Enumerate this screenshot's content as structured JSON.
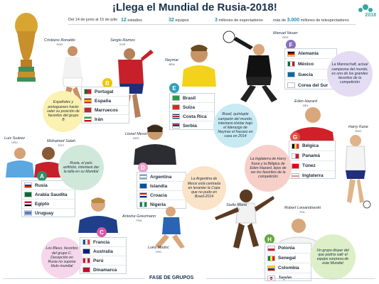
{
  "header": {
    "title": "¡Llega el Mundial de Rusia-2018!",
    "dates": "Del 14 de junio al 15 de julio",
    "stadiums_num": "12",
    "stadiums_label": "estadios",
    "teams_num": "32",
    "teams_label": "equipos",
    "spectators_num": "3",
    "spectators_label": "millones de espectadores",
    "tv_pre": "más de",
    "tv_num": "3.000",
    "tv_label": "millones de telespectadores",
    "logo_year": "2018"
  },
  "colors": {
    "accent": "#1d8fb5",
    "groupA": "#2f8f6a",
    "groupB": "#f0c400",
    "groupC": "#d45aa4",
    "groupD": "#e8a0c8",
    "groupE": "#2fa0b8",
    "groupF": "#8b6fc0",
    "groupG": "#e2534a",
    "groupH": "#66a83f"
  },
  "players": {
    "ronaldo": {
      "name": "Cristiano Ronaldo",
      "country": "POR"
    },
    "ramos": {
      "name": "Sergio Ramos",
      "country": "ESP"
    },
    "neymar": {
      "name": "Neymar",
      "country": "BRA"
    },
    "neuer": {
      "name": "Manuel Neuer",
      "country": "GER"
    },
    "suarez": {
      "name": "Luis Suárez",
      "country": "URU"
    },
    "salah": {
      "name": "Mohamed Salah",
      "country": "EGY"
    },
    "messi": {
      "name": "Lionel Messi",
      "country": "ARG"
    },
    "hazard": {
      "name": "Eden Hazard",
      "country": "BEL"
    },
    "kane": {
      "name": "Harry Kane",
      "country": "ENG"
    },
    "griezmann": {
      "name": "Antoine Griezmann",
      "country": "FRA"
    },
    "modric": {
      "name": "Luka Modric",
      "country": "CRO"
    },
    "mane": {
      "name": "Sadio Mané",
      "country": "SEN"
    },
    "lewandowski": {
      "name": "Robert Lewandowski",
      "country": "POL"
    }
  },
  "groups": {
    "A": {
      "letter": "A",
      "teams": [
        "Rusia",
        "Arabia Saudita",
        "Egipto",
        "Uruguay"
      ]
    },
    "B": {
      "letter": "B",
      "teams": [
        "Portugal",
        "España",
        "Marruecos",
        "Irán"
      ]
    },
    "C": {
      "letter": "C",
      "teams": [
        "Francia",
        "Australia",
        "Perú",
        "Dinamarca"
      ]
    },
    "D": {
      "letter": "D",
      "teams": [
        "Argentina",
        "Islandia",
        "Croacia",
        "Nigeria"
      ]
    },
    "E": {
      "letter": "E",
      "teams": [
        "Brasil",
        "Suiza",
        "Costa Rica",
        "Serbia"
      ]
    },
    "F": {
      "letter": "F",
      "teams": [
        "Alemania",
        "México",
        "Suecia",
        "Corea del Sur"
      ]
    },
    "G": {
      "letter": "G",
      "teams": [
        "Bélgica",
        "Panamá",
        "Túnez",
        "Inglaterra"
      ]
    },
    "H": {
      "letter": "H",
      "teams": [
        "Polonia",
        "Senegal",
        "Colombia",
        "Japón"
      ]
    }
  },
  "notes": {
    "A": "Rusia, el país anfitrión, intentará dar la talla en su Mundial",
    "B": "Españoles y portugueses harán valer su posición de favoritos del grupo B",
    "C": "Los Bleus, favoritos del grupo C. Decepción en Rusia no supone título mundial",
    "D": "La Argentina de Messi está centrada en levantar la Copa que no pudo en Brasil-2014",
    "E": "Brasil, quíntuple campeón del mundo, intentará olvidar bajo el liderazgo de Neymar el fracaso en casa en 2014",
    "F": "La Mannschaft, actual campeona del mundo, es uno de los grandes favoritos de la competición",
    "G": "La Inglaterra de Harry Kane y la Bélgica de Eden Hazard, lejos de ser los favoritos de la competición",
    "H": "Un grupo dispar del que podría salir el equipo sorpresa de este Mundial"
  },
  "footer": {
    "label": "FASE DE GRUPOS"
  }
}
